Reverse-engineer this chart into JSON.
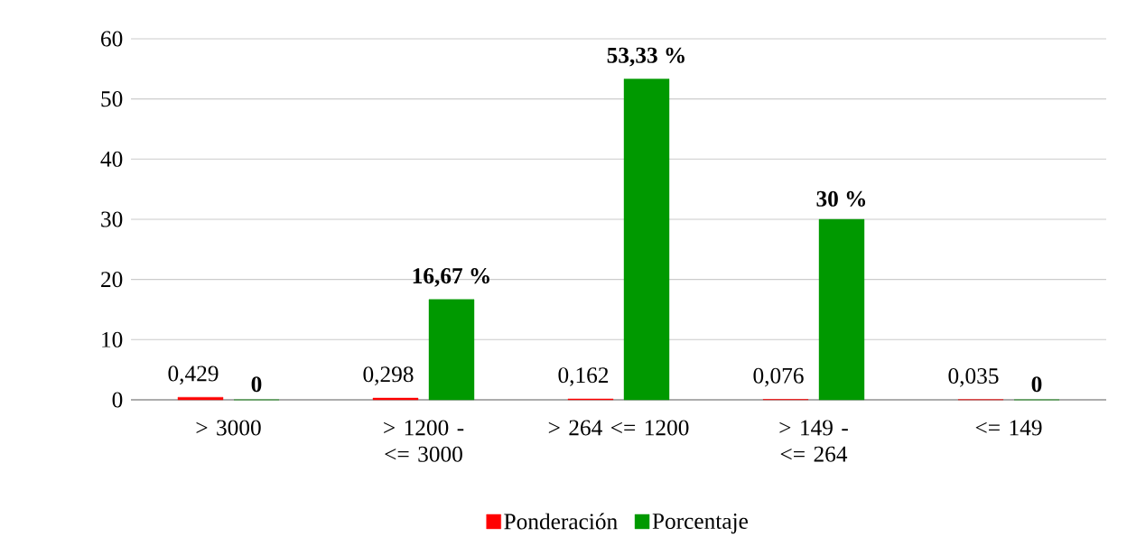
{
  "chart_data": {
    "type": "bar",
    "categories": [
      "> 3000",
      "> 1200 - <= 3000",
      "> 264 <= 1200",
      "> 149 - <= 264",
      "<= 149"
    ],
    "series": [
      {
        "name": "Ponderación",
        "color": "#ff0000",
        "values": [
          0.429,
          0.298,
          0.162,
          0.076,
          0.035
        ],
        "value_labels": [
          "0,429",
          "0,298",
          "0,162",
          "0,076",
          "0,035"
        ]
      },
      {
        "name": "Porcentaje",
        "color": "#009900",
        "values": [
          0,
          16.67,
          53.33,
          30,
          0
        ],
        "value_labels": [
          "0",
          "16,67 %",
          "53,33 %",
          "30 %",
          "0"
        ]
      }
    ],
    "ylim": [
      0,
      60
    ],
    "yticks": [
      0,
      10,
      20,
      30,
      40,
      50,
      60
    ],
    "grid": "y",
    "legend": "bottom"
  }
}
